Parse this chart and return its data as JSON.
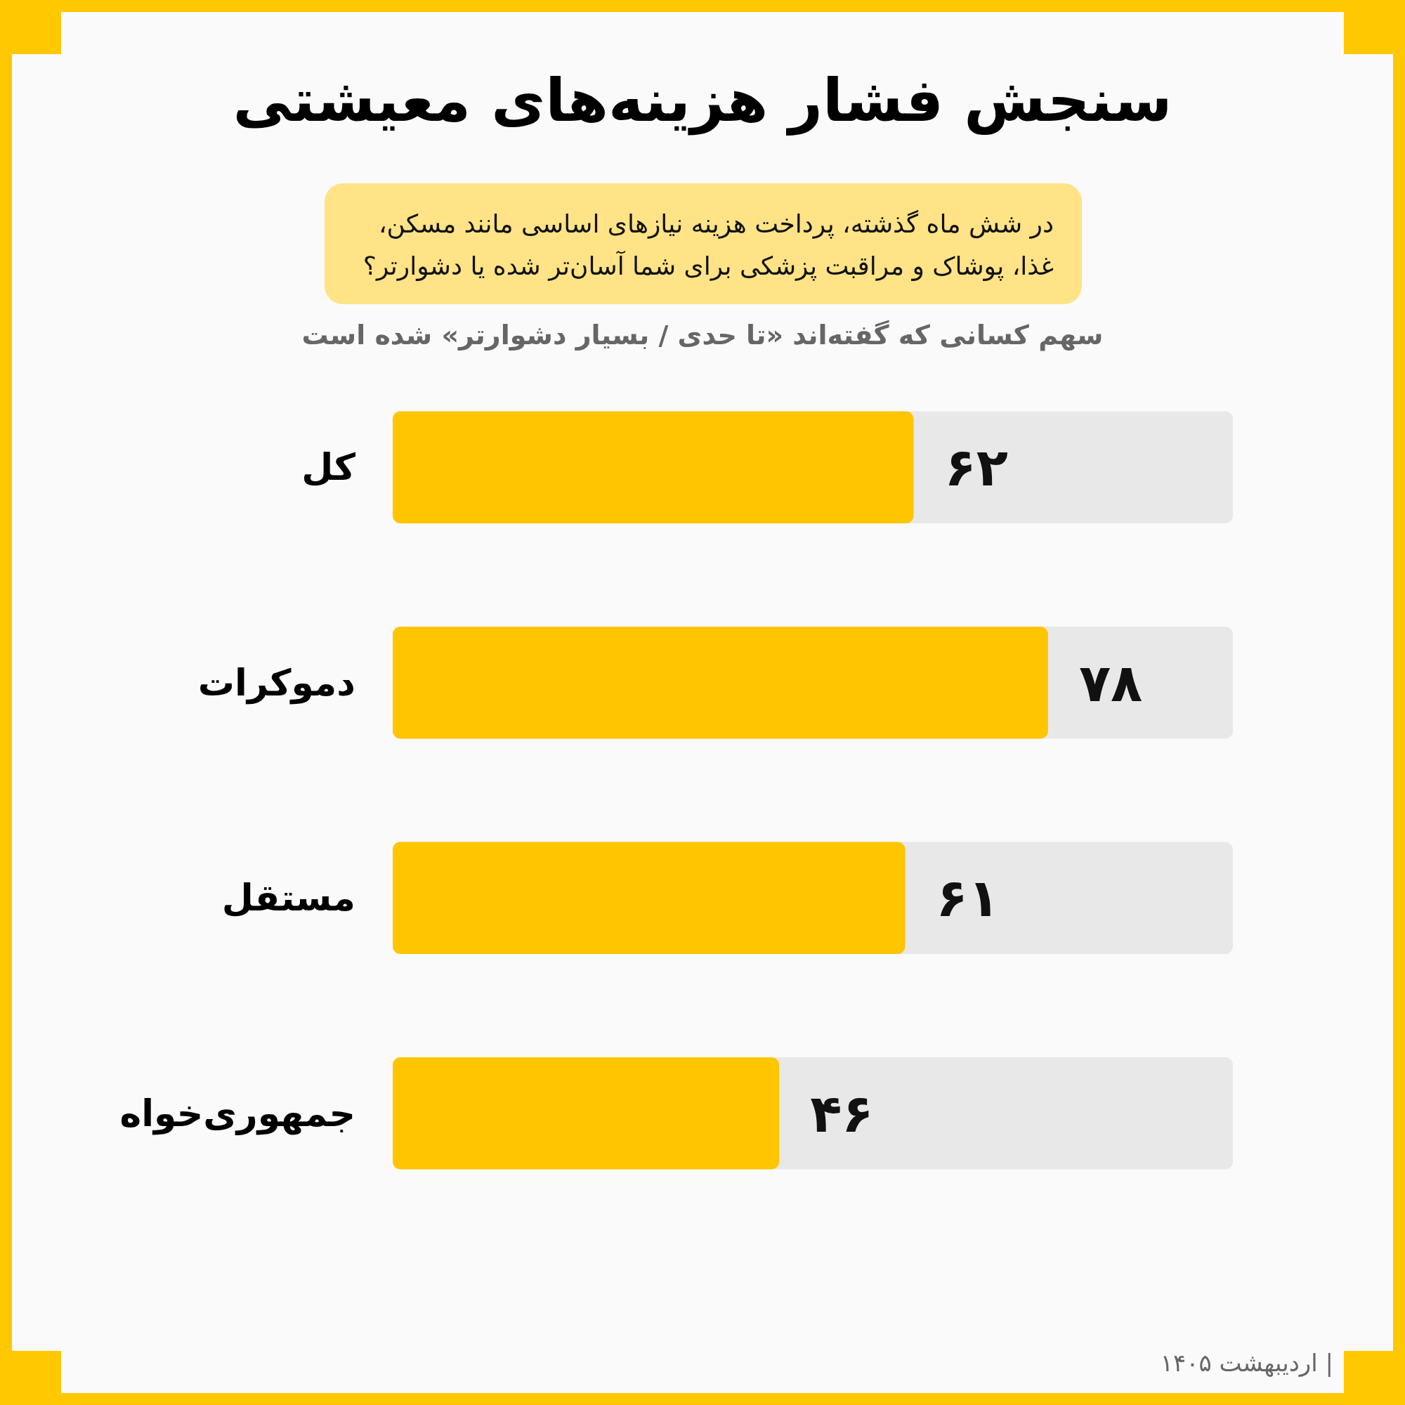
{
  "chart_data": {
    "type": "bar",
    "orientation": "horizontal",
    "title": "سنجش فشار هزینه‌های معیشتی",
    "subtitle": "در شش ماه گذشته، پرداخت هزینه نیازهای اساسی مانند مسکن، غذا، پوشاک و مراقبت پزشکی برای شما آسان‌تر شده یا دشوارتر؟",
    "xlabel": "سهم کسانی که گفته‌اند «تا حدی / بسیار دشوارتر» شده است",
    "categories": [
      "کل",
      "دموکرات",
      "مستقل",
      "جمهوری‌خواه"
    ],
    "values": [
      62,
      78,
      61,
      46
    ],
    "value_labels": [
      "۶۲",
      "۷۸",
      "۶۱",
      "۴۶"
    ],
    "color": "#ffc500",
    "xlim": [
      0,
      100
    ],
    "tick_labels": "y",
    "annotations": [
      "| اردیبهشت ۱۴۰۵"
    ]
  }
}
